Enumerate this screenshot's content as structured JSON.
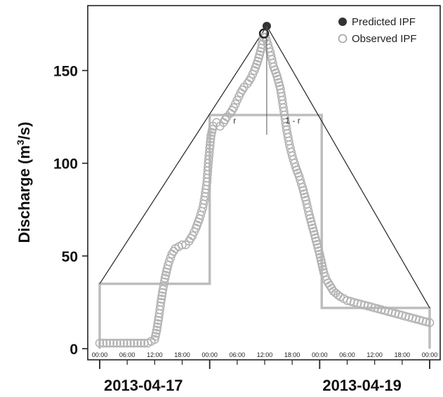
{
  "chart_data": {
    "type": "scatter",
    "ylabel": "Discharge (m³/s)",
    "ylabel_parts": {
      "main": "Discharge (m",
      "sup": "3",
      "tail": "/s)"
    },
    "ylim": [
      -6,
      185
    ],
    "y_ticks": [
      0,
      50,
      100,
      150
    ],
    "x_range_hours": [
      0,
      48
    ],
    "x_tick_labels": [
      "00:00",
      "06:00",
      "12:00",
      "18:00",
      "00:00",
      "06:00",
      "12:00",
      "18:00",
      "00:00",
      "06:00",
      "12:00",
      "18:00",
      "00:00"
    ],
    "date_labels": [
      "2013-04-17",
      "2013-04-19"
    ],
    "grid": false,
    "legend_position": "top-right",
    "legend": [
      {
        "label": "Predicted IPF",
        "marker": "filled-circle",
        "color": "#333333"
      },
      {
        "label": "Observed IPF",
        "marker": "open-circle",
        "color": "#aaaaaa"
      }
    ],
    "predicted_ipf": {
      "x": 24.3,
      "y": 174
    },
    "observed_ipf_peak": {
      "x": 23.9,
      "y": 170
    },
    "annotations": {
      "r_label": "r",
      "one_minus_r_label": "1 - r"
    },
    "triangle": [
      [
        0,
        35
      ],
      [
        24.3,
        174
      ],
      [
        48,
        22
      ]
    ],
    "step_boxes": [
      {
        "x0": 0,
        "x1": 16,
        "y": 35
      },
      {
        "x0": 16,
        "x1": 32.3,
        "y": 126
      },
      {
        "x0": 32.3,
        "x1": 48,
        "y": 22
      }
    ],
    "observed_series": {
      "name": "Observed IPF",
      "points": [
        [
          0,
          3
        ],
        [
          1,
          3
        ],
        [
          2,
          3
        ],
        [
          3,
          3
        ],
        [
          4,
          3
        ],
        [
          5,
          3
        ],
        [
          6,
          3
        ],
        [
          7,
          3
        ],
        [
          7.5,
          4
        ],
        [
          8,
          5
        ],
        [
          8.3,
          10
        ],
        [
          8.6,
          17
        ],
        [
          8.9,
          25
        ],
        [
          9.2,
          32
        ],
        [
          9.5,
          38
        ],
        [
          9.8,
          43
        ],
        [
          10.1,
          47
        ],
        [
          10.5,
          51
        ],
        [
          11,
          54
        ],
        [
          11.5,
          55
        ],
        [
          12,
          56
        ],
        [
          12.5,
          56
        ],
        [
          13,
          58
        ],
        [
          13.5,
          61
        ],
        [
          14,
          65
        ],
        [
          14.5,
          70
        ],
        [
          15,
          76
        ],
        [
          15.3,
          82
        ],
        [
          15.6,
          90
        ],
        [
          15.8,
          100
        ],
        [
          16,
          108
        ],
        [
          16.2,
          115
        ],
        [
          16.5,
          120
        ],
        [
          17,
          122
        ],
        [
          17.5,
          120
        ],
        [
          18,
          122
        ],
        [
          18.5,
          125
        ],
        [
          19,
          127
        ],
        [
          19.5,
          130
        ],
        [
          20,
          134
        ],
        [
          20.5,
          138
        ],
        [
          21,
          141
        ],
        [
          21.5,
          143
        ],
        [
          22,
          146
        ],
        [
          22.5,
          150
        ],
        [
          23,
          155
        ],
        [
          23.5,
          162
        ],
        [
          23.9,
          170
        ],
        [
          24.3,
          166
        ],
        [
          24.8,
          160
        ],
        [
          25.3,
          152
        ],
        [
          25.8,
          147
        ],
        [
          26.3,
          140
        ],
        [
          26.8,
          128
        ],
        [
          27.2,
          118
        ],
        [
          27.6,
          110
        ],
        [
          28,
          104
        ],
        [
          28.5,
          98
        ],
        [
          29,
          93
        ],
        [
          29.5,
          87
        ],
        [
          30,
          80
        ],
        [
          30.5,
          72
        ],
        [
          31,
          65
        ],
        [
          31.5,
          58
        ],
        [
          32,
          51
        ],
        [
          32.3,
          46
        ],
        [
          32.6,
          41
        ],
        [
          33,
          37
        ],
        [
          33.5,
          34
        ],
        [
          34,
          31
        ],
        [
          35,
          28
        ],
        [
          36,
          26
        ],
        [
          37,
          25
        ],
        [
          38,
          24
        ],
        [
          39,
          23
        ],
        [
          40,
          22
        ],
        [
          41,
          21
        ],
        [
          42,
          20
        ],
        [
          43,
          19
        ],
        [
          44,
          18
        ],
        [
          45,
          17
        ],
        [
          46,
          16
        ],
        [
          47,
          15
        ],
        [
          48,
          14
        ]
      ]
    }
  }
}
